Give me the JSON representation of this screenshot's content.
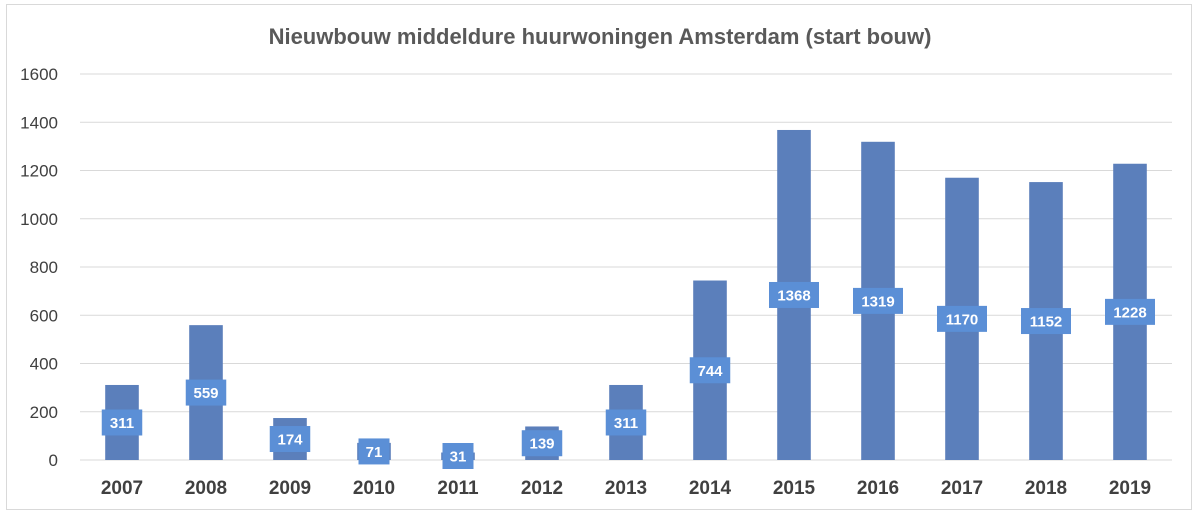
{
  "chart_data": {
    "type": "bar",
    "title": "Nieuwbouw middeldure huurwoningen Amsterdam (start bouw)",
    "xlabel": "",
    "ylabel": "",
    "categories": [
      "2007",
      "2008",
      "2009",
      "2010",
      "2011",
      "2012",
      "2013",
      "2014",
      "2015",
      "2016",
      "2017",
      "2018",
      "2019"
    ],
    "values": [
      311,
      559,
      174,
      71,
      31,
      139,
      311,
      744,
      1368,
      1319,
      1170,
      1152,
      1228
    ],
    "data_labels": [
      "311",
      "559",
      "174",
      "71",
      "31",
      "139",
      "311",
      "744",
      "1368",
      "1319",
      "1170",
      "1152",
      "1228"
    ],
    "ylim": [
      0,
      1600
    ],
    "yticks": [
      0,
      200,
      400,
      600,
      800,
      1000,
      1200,
      1400,
      1600
    ],
    "ytick_labels": [
      "0",
      "200",
      "400",
      "600",
      "800",
      "1000",
      "1200",
      "1400",
      "1600"
    ],
    "grid": true,
    "legend": "none",
    "colors": {
      "bar": "#5b7fbb",
      "label_box": "#5b8fd6",
      "grid": "#d9d9d9"
    }
  }
}
